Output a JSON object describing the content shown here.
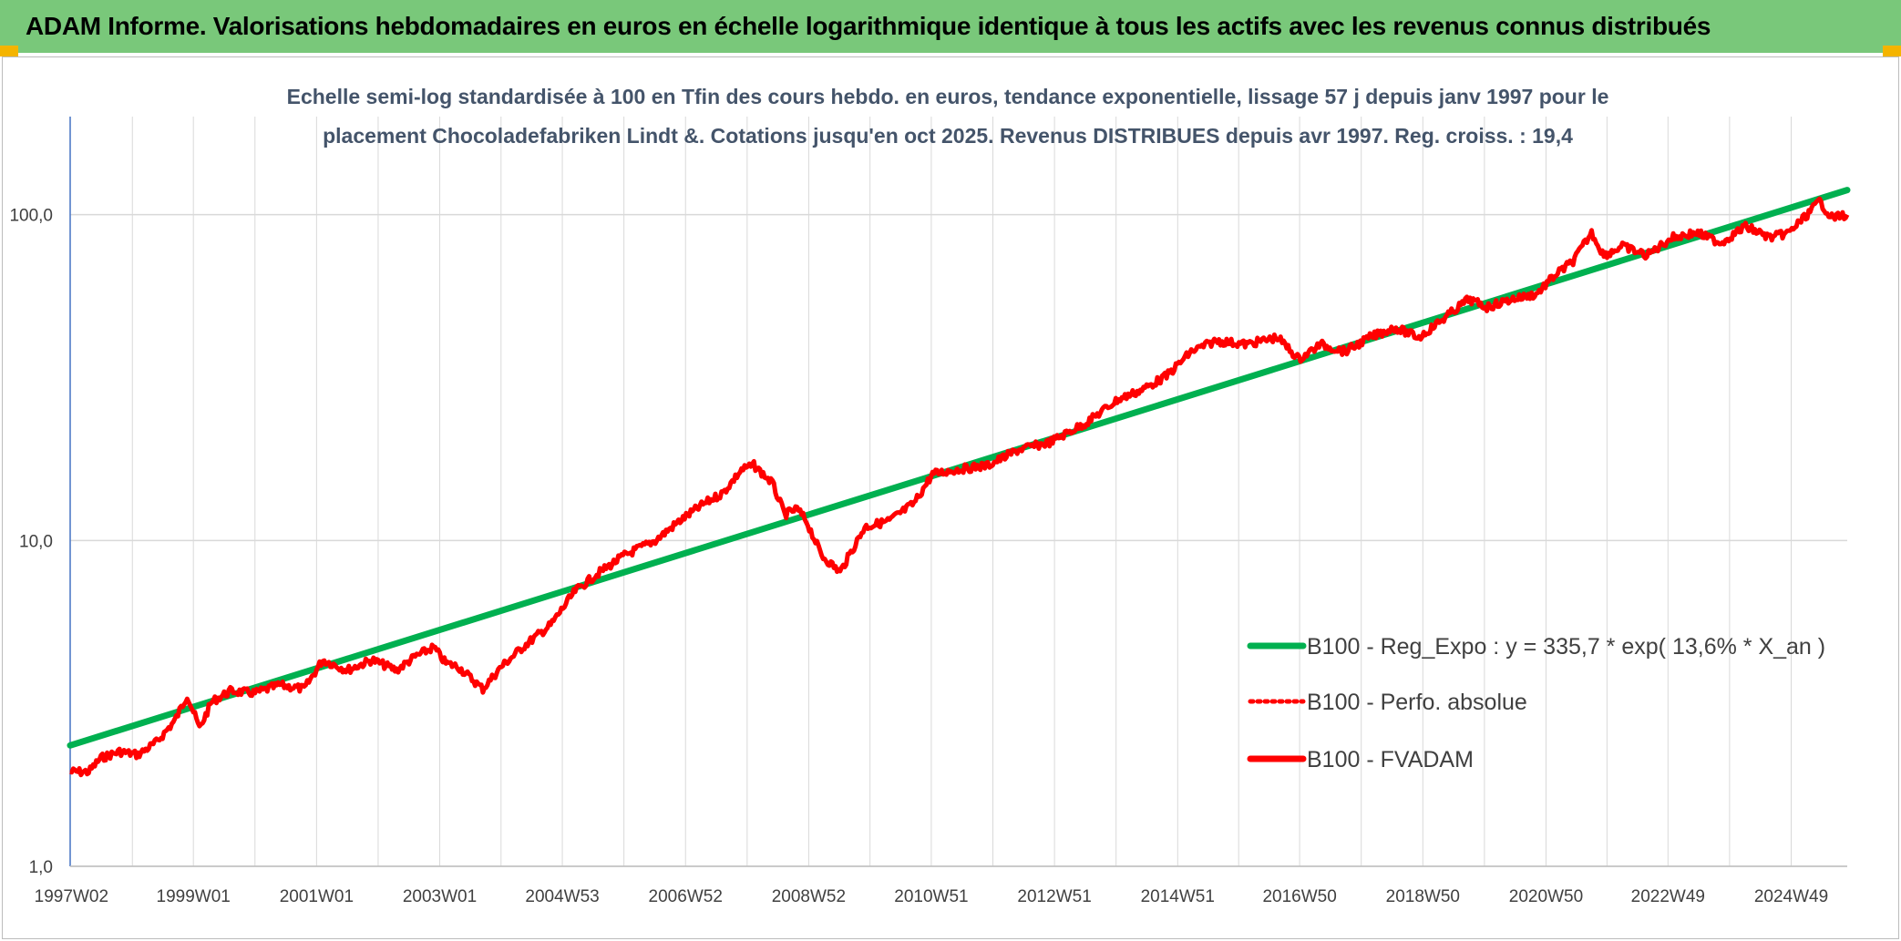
{
  "header": {
    "title": "ADAM Informe. Valorisations hebdomadaires en euros en échelle logarithmique identique à tous les actifs avec les revenus connus distribués"
  },
  "colors": {
    "header_bg": "#79c87a",
    "corner": "#f4b400",
    "trend": "#00b050",
    "fvadam": "#ff0000",
    "grid": "#d9d9d9",
    "axis": "#4472c4"
  },
  "chart_data": {
    "type": "line",
    "subtitle_lines": [
      "Echelle semi-log standardisée à 100 en Tfin des cours hebdo. en euros, tendance exponentielle, lissage 57 j depuis janv 1997 pour le",
      "placement Chocoladefabriken Lindt &. Cotations jusqu'en oct 2025. Revenus DISTRIBUES depuis avr 1997. Reg. croiss. : 19,4"
    ],
    "y_scale": "log",
    "ylim": [
      1,
      200
    ],
    "xlim": [
      1997.0,
      2025.85
    ],
    "y_ticks": [
      {
        "value": 1,
        "label": "1,0"
      },
      {
        "value": 10,
        "label": "10,0"
      },
      {
        "value": 100,
        "label": "100,0"
      }
    ],
    "x_ticks": [
      {
        "value": 1997.02,
        "label": "1997W02"
      },
      {
        "value": 1999.0,
        "label": "1999W01"
      },
      {
        "value": 2001.0,
        "label": "2001W01"
      },
      {
        "value": 2003.0,
        "label": "2003W01"
      },
      {
        "value": 2004.99,
        "label": "2004W53"
      },
      {
        "value": 2006.99,
        "label": "2006W52"
      },
      {
        "value": 2008.99,
        "label": "2008W52"
      },
      {
        "value": 2010.98,
        "label": "2010W51"
      },
      {
        "value": 2012.98,
        "label": "2012W51"
      },
      {
        "value": 2014.98,
        "label": "2014W51"
      },
      {
        "value": 2016.96,
        "label": "2016W50"
      },
      {
        "value": 2018.96,
        "label": "2018W50"
      },
      {
        "value": 2020.96,
        "label": "2020W50"
      },
      {
        "value": 2022.94,
        "label": "2022W49"
      },
      {
        "value": 2024.94,
        "label": "2024W49"
      }
    ],
    "grid": true,
    "legend_position": "right",
    "series": [
      {
        "name": "B100 - Reg_Expo : y = 335,7 * exp( 13,6% *  X_an )",
        "style": "trend",
        "x": [
          1997.0,
          2025.85
        ],
        "y": [
          2.35,
          119.0
        ]
      },
      {
        "name": "B100 - Perfo. absolue",
        "style": "dotted",
        "x": [],
        "y": []
      },
      {
        "name": "B100 - FVADAM",
        "style": "solid",
        "x": [
          1997.0,
          1997.3,
          1997.5,
          1997.8,
          1998.1,
          1998.4,
          1998.7,
          1998.9,
          1999.1,
          1999.3,
          1999.6,
          2000.0,
          2000.4,
          2000.8,
          2001.1,
          2001.5,
          2001.9,
          2002.3,
          2002.6,
          2002.9,
          2003.1,
          2003.3,
          2003.7,
          2004.0,
          2004.4,
          2004.8,
          2005.2,
          2005.6,
          2006.0,
          2006.5,
          2006.9,
          2007.3,
          2007.6,
          2007.9,
          2008.1,
          2008.4,
          2008.6,
          2008.8,
          2008.95,
          2009.2,
          2009.5,
          2009.9,
          2010.3,
          2010.7,
          2011.0,
          2011.4,
          2011.9,
          2012.4,
          2012.9,
          2013.5,
          2014.0,
          2014.4,
          2014.8,
          2015.2,
          2015.6,
          2016.1,
          2016.6,
          2016.95,
          2017.3,
          2017.7,
          2018.1,
          2018.5,
          2018.9,
          2019.3,
          2019.7,
          2020.0,
          2020.4,
          2020.8,
          2021.1,
          2021.4,
          2021.7,
          2021.9,
          2022.2,
          2022.6,
          2023.0,
          2023.4,
          2023.8,
          2024.2,
          2024.6,
          2024.9,
          2025.2,
          2025.4,
          2025.6,
          2025.85
        ],
        "y": [
          1.95,
          1.95,
          2.15,
          2.25,
          2.2,
          2.4,
          2.8,
          3.35,
          2.65,
          3.2,
          3.45,
          3.4,
          3.6,
          3.5,
          4.3,
          4.0,
          4.3,
          4.0,
          4.4,
          4.7,
          4.2,
          4.1,
          3.5,
          4.1,
          4.8,
          5.5,
          7.0,
          8.0,
          9.0,
          10.0,
          11.5,
          13.0,
          14.0,
          16.5,
          17.0,
          15.0,
          12.0,
          12.5,
          11.5,
          9.0,
          8.0,
          11.0,
          11.5,
          13.0,
          16.0,
          16.5,
          17.0,
          19.0,
          20.0,
          23.0,
          27.0,
          29.0,
          32.0,
          38.0,
          41.0,
          40.0,
          42.0,
          36.0,
          40.0,
          38.0,
          42.0,
          45.0,
          42.0,
          48.0,
          55.0,
          52.0,
          55.0,
          57.0,
          65.0,
          72.0,
          88.0,
          75.0,
          80.0,
          75.0,
          85.0,
          88.0,
          82.0,
          92.0,
          85.0,
          88.0,
          100.0,
          110.0,
          98.0,
          100.0
        ]
      }
    ]
  }
}
